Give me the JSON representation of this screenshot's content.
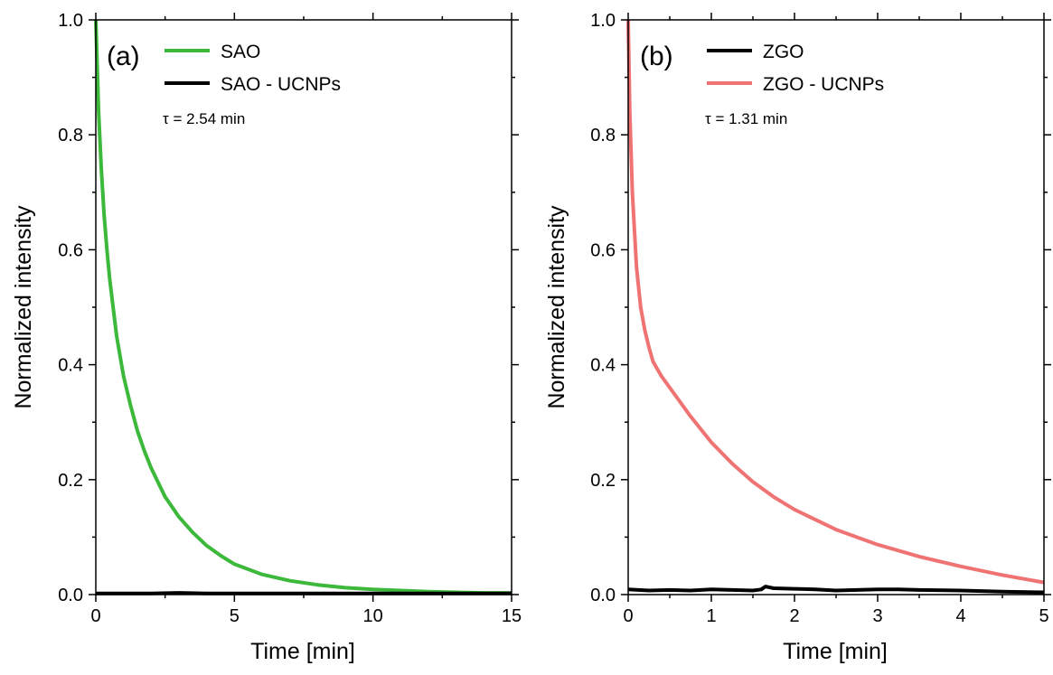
{
  "chart_data": [
    {
      "type": "line",
      "panel_label": "(a)",
      "xlabel": "Time [min]",
      "ylabel": "Normalized intensity",
      "xlim": [
        0,
        15
      ],
      "ylim": [
        0,
        1.0
      ],
      "x_ticks": [
        "0",
        "5",
        "10",
        "15"
      ],
      "y_ticks": [
        "0.0",
        "0.2",
        "0.4",
        "0.6",
        "0.8",
        "1.0"
      ],
      "legend_position": "top-left",
      "annotation": "τ = 2.54 min",
      "series": [
        {
          "name": "SAO",
          "color": "#3cb83a",
          "x": [
            0,
            0.1,
            0.2,
            0.3,
            0.4,
            0.5,
            0.75,
            1,
            1.25,
            1.5,
            1.75,
            2,
            2.5,
            3,
            3.5,
            4,
            4.5,
            5,
            6,
            7,
            8,
            9,
            10,
            11,
            12,
            13,
            14,
            15
          ],
          "y": [
            1.0,
            0.84,
            0.74,
            0.66,
            0.6,
            0.55,
            0.45,
            0.38,
            0.33,
            0.285,
            0.25,
            0.22,
            0.17,
            0.135,
            0.108,
            0.085,
            0.068,
            0.053,
            0.035,
            0.024,
            0.017,
            0.012,
            0.009,
            0.007,
            0.005,
            0.004,
            0.003,
            0.003
          ]
        },
        {
          "name": "SAO - UCNPs",
          "color": "#000000",
          "x": [
            0,
            1,
            2,
            3,
            4,
            5,
            6,
            7,
            8,
            9,
            10,
            11,
            12,
            13,
            14,
            15
          ],
          "y": [
            0.002,
            0.002,
            0.002,
            0.003,
            0.002,
            0.002,
            0.002,
            0.002,
            0.002,
            0.002,
            0.002,
            0.002,
            0.002,
            0.002,
            0.002,
            0.002
          ]
        }
      ]
    },
    {
      "type": "line",
      "panel_label": "(b)",
      "xlabel": "Time [min]",
      "ylabel": "Normalized intensity",
      "xlim": [
        0,
        5
      ],
      "ylim": [
        0,
        1.0
      ],
      "x_ticks": [
        "0",
        "1",
        "2",
        "3",
        "4",
        "5"
      ],
      "y_ticks": [
        "0.0",
        "0.2",
        "0.4",
        "0.6",
        "0.8",
        "1.0"
      ],
      "legend_position": "top-left",
      "annotation": "τ = 1.31 min",
      "series": [
        {
          "name": "ZGO",
          "color": "#000000",
          "x": [
            0,
            0.25,
            0.5,
            0.75,
            1.0,
            1.25,
            1.5,
            1.6,
            1.65,
            1.75,
            2.0,
            2.25,
            2.5,
            2.75,
            3.0,
            3.25,
            3.5,
            4.0,
            4.5,
            5.0
          ],
          "y": [
            0.009,
            0.007,
            0.008,
            0.007,
            0.009,
            0.008,
            0.007,
            0.009,
            0.014,
            0.011,
            0.01,
            0.009,
            0.007,
            0.008,
            0.009,
            0.009,
            0.008,
            0.007,
            0.005,
            0.004
          ]
        },
        {
          "name": "ZGO - UCNPs",
          "color": "#f07373",
          "x": [
            0,
            0.02,
            0.05,
            0.1,
            0.15,
            0.2,
            0.25,
            0.3,
            0.4,
            0.5,
            0.75,
            1.0,
            1.25,
            1.5,
            1.75,
            2.0,
            2.5,
            3.0,
            3.5,
            4.0,
            4.5,
            5.0
          ],
          "y": [
            1.0,
            0.84,
            0.7,
            0.57,
            0.5,
            0.46,
            0.43,
            0.405,
            0.38,
            0.36,
            0.31,
            0.265,
            0.228,
            0.196,
            0.17,
            0.148,
            0.113,
            0.087,
            0.066,
            0.049,
            0.034,
            0.021
          ]
        }
      ]
    }
  ]
}
